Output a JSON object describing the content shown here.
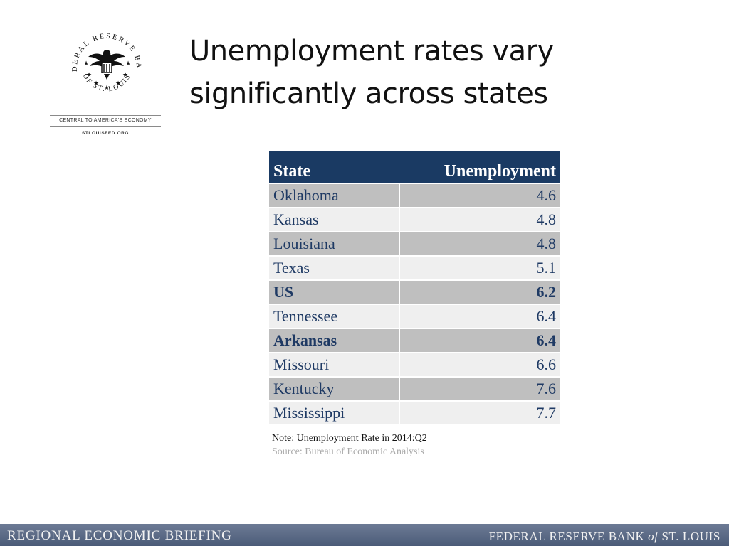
{
  "title_line1": "Unemployment rates vary",
  "title_line2": "significantly across states",
  "logo": {
    "top_text": "FEDERAL RESERVE BANK",
    "bottom_text": "OF ST. LOUIS",
    "tagline": "CENTRAL TO AMERICA'S ECONOMY",
    "url": "STLOUISFED.ORG"
  },
  "table": {
    "headers": [
      "State",
      "Unemployment"
    ],
    "rows": [
      {
        "state": "Oklahoma",
        "value": "4.6"
      },
      {
        "state": "Kansas",
        "value": "4.8"
      },
      {
        "state": "Louisiana",
        "value": "4.8"
      },
      {
        "state": "Texas",
        "value": "5.1"
      },
      {
        "state": "US",
        "value": "6.2"
      },
      {
        "state": "Tennessee",
        "value": "6.4"
      },
      {
        "state": "Arkansas",
        "value": "6.4"
      },
      {
        "state": "Missouri",
        "value": "6.6"
      },
      {
        "state": "Kentucky",
        "value": "7.6"
      },
      {
        "state": "Mississippi",
        "value": "7.7"
      }
    ],
    "note": "Note: Unemployment Rate in 2014:Q2",
    "source": "Source: Bureau of Economic Analysis"
  },
  "footer": {
    "left": "REGIONAL ECONOMIC BRIEFING",
    "right_a": "FEDERAL RESERVE BANK ",
    "right_of": "of",
    "right_b": " ST. LOUIS"
  },
  "colors": {
    "header_bg": "#1a3a63",
    "row_dark": "#bfbfbf",
    "row_light": "#efefef",
    "text_navy": "#1f3a64"
  }
}
